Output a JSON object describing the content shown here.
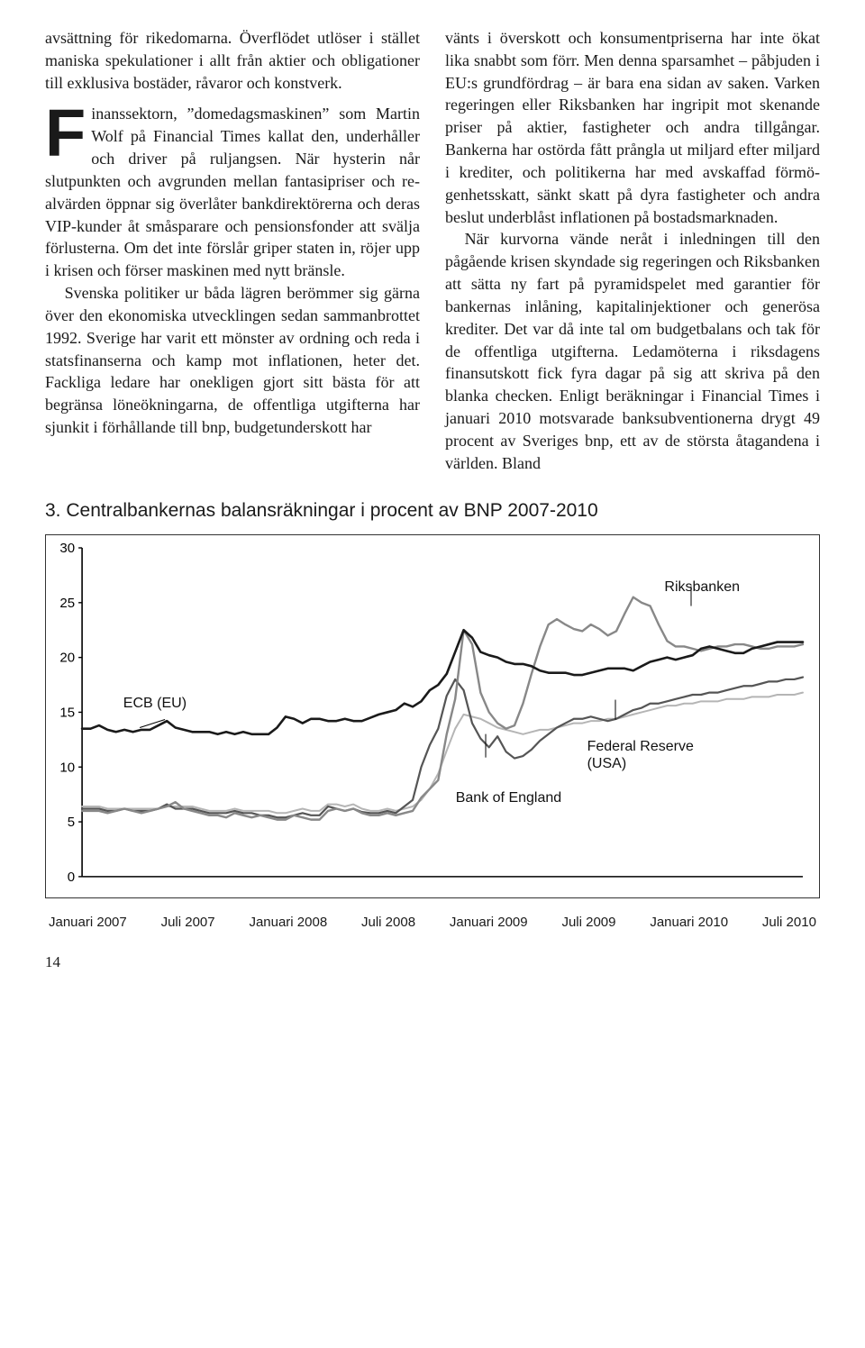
{
  "text": {
    "col1_p1a": "avsättning för rikedomarna. Överflödet ut­löser i stället maniska spekulationer i allt från aktier och obligationer till exklusiva bostäder, råvaror och konstverk.",
    "col1_dropcap": "F",
    "col1_p2": "inanssektorn, ”domedagsmaskinen” som Martin Wolf på Financial Times kallat den, underhåller och driver på ruljangsen. När hysterin når slutpunkten och avgrunden mellan fantasipriser och re­alvärden öppnar sig överlåter bankdirektö­rerna och deras VIP-kunder åt småsparare och pensionsfonder att svälja förlusterna. Om det inte förslår griper staten in, röjer upp i krisen och förser maskinen med nytt bränsle.",
    "col1_p3": "Svenska politiker ur båda lägren beröm­mer sig gärna över den ekonomiska utveck­lingen sedan sammanbrottet 1992. Sverige har varit ett mönster av ordning och reda i statsfinanserna och kamp mot inflationen, heter det. Fackliga ledare har onekligen gjort sitt bästa för att begränsa löneökning­arna, de offentliga utgifterna har sjunkit i förhållande till bnp, budgetunderskott har",
    "col2_p1": "vänts i överskott och konsumentpriserna har inte ökat lika snabbt som förr. Men denna sparsamhet – påbjuden i EU:s grundfördrag – är bara ena sidan av saken. Varken reger­ingen eller Riksbanken har ingripit mot skenande priser på aktier, fastigheter och andra tillgångar. Bankerna har ostörda fått prångla ut miljard efter miljard i krediter, och politikerna har med avskaffad förmö­genhetsskatt, sänkt skatt på dyra fastigheter och andra beslut underblåst inflationen på bostadsmarknaden.",
    "col2_p2": "När kurvorna vände neråt i inledningen till den pågående krisen skyndade sig reger­ingen och Riksbanken att sätta ny fart på pyramidspelet med garantier för bankernas inlåning, kapitalinjektioner och generösa krediter. Det var då inte tal om budgetba­lans och tak för de offentliga utgifterna. Le­damöterna i riksdagens finansutskott fick fyra dagar på sig att skriva på den blanka checken. Enligt beräkningar i Financial Ti­mes i januari 2010 motsvarade banksubven­tionerna drygt 49 procent av Sveriges bnp, ett av de största åtagandena i världen. Bland"
  },
  "chart": {
    "title": "3. Centralbankernas balansräkningar i procent av BNP 2007-2010",
    "type": "line",
    "ylim": [
      0,
      30
    ],
    "yticks": [
      0,
      5,
      10,
      15,
      20,
      25,
      30
    ],
    "xticks": [
      "Januari 2007",
      "Juli 2007",
      "Januari 2008",
      "Juli 2008",
      "Januari 2009",
      "Juli 2009",
      "Januari 2010",
      "Juli 2010"
    ],
    "background_color": "#ffffff",
    "axis_color": "#000000",
    "series": {
      "riksbanken": {
        "label": "Riksbanken",
        "color": "#888888",
        "width": 2.4,
        "data": [
          6.0,
          6.0,
          6.0,
          5.8,
          6.0,
          6.2,
          6.0,
          5.8,
          6.0,
          6.2,
          6.4,
          6.8,
          6.2,
          6.0,
          5.8,
          5.6,
          5.6,
          5.4,
          5.8,
          5.6,
          5.4,
          5.6,
          5.4,
          5.2,
          5.2,
          5.6,
          5.4,
          5.2,
          5.2,
          6.0,
          6.2,
          6.0,
          6.2,
          5.8,
          5.6,
          5.6,
          5.8,
          5.6,
          5.8,
          6.0,
          7.2,
          8.0,
          8.8,
          13.0,
          16.2,
          22.5,
          21.2,
          16.8,
          15.0,
          14.0,
          13.5,
          13.8,
          15.8,
          18.5,
          21.0,
          23.0,
          23.5,
          23.0,
          22.6,
          22.4,
          23.0,
          22.6,
          22.0,
          22.4,
          24.0,
          25.5,
          25.0,
          24.7,
          23.0,
          21.5,
          21.0,
          21.0,
          20.8,
          20.6,
          20.8,
          21.0,
          21.0,
          21.2,
          21.2,
          21.0,
          20.8,
          20.8,
          21.0,
          21.0,
          21.0,
          21.2
        ]
      },
      "ecb": {
        "label": "ECB (EU)",
        "color": "#1a1a1a",
        "width": 2.6,
        "data": [
          13.5,
          13.5,
          13.8,
          13.4,
          13.2,
          13.4,
          13.2,
          13.4,
          13.4,
          13.8,
          14.2,
          13.6,
          13.4,
          13.2,
          13.2,
          13.2,
          13.0,
          13.2,
          13.0,
          13.2,
          13.0,
          13.0,
          13.0,
          13.6,
          14.6,
          14.4,
          14.0,
          14.4,
          14.4,
          14.2,
          14.2,
          14.4,
          14.2,
          14.2,
          14.5,
          14.8,
          15.0,
          15.2,
          15.8,
          15.5,
          16.0,
          17.0,
          17.5,
          18.5,
          20.5,
          22.5,
          21.8,
          20.5,
          20.2,
          20.0,
          19.6,
          19.4,
          19.4,
          19.2,
          18.8,
          18.6,
          18.6,
          18.6,
          18.4,
          18.4,
          18.6,
          18.8,
          19.0,
          19.0,
          19.0,
          18.8,
          19.2,
          19.6,
          19.8,
          20.0,
          19.8,
          20.0,
          20.2,
          20.8,
          21.0,
          20.8,
          20.6,
          20.4,
          20.4,
          20.8,
          21.0,
          21.2,
          21.4,
          21.4,
          21.4,
          21.4
        ]
      },
      "boe": {
        "label": "Bank of England",
        "color": "#555555",
        "width": 2.2,
        "data": [
          6.2,
          6.2,
          6.2,
          6.0,
          6.0,
          6.2,
          6.0,
          6.0,
          6.0,
          6.2,
          6.6,
          6.2,
          6.2,
          6.2,
          6.0,
          5.8,
          5.8,
          5.8,
          6.0,
          5.8,
          5.8,
          5.6,
          5.6,
          5.4,
          5.4,
          5.6,
          5.8,
          5.6,
          5.6,
          6.4,
          6.2,
          6.0,
          6.2,
          5.9,
          5.8,
          5.8,
          6.0,
          5.8,
          6.4,
          7.0,
          10.0,
          12.0,
          13.5,
          16.5,
          18.0,
          17.0,
          14.0,
          12.6,
          11.8,
          12.8,
          11.4,
          10.8,
          11.0,
          11.6,
          12.4,
          13.0,
          13.6,
          14.0,
          14.4,
          14.4,
          14.6,
          14.4,
          14.2,
          14.4,
          14.8,
          15.2,
          15.4,
          15.8,
          15.8,
          16.0,
          16.2,
          16.4,
          16.6,
          16.6,
          16.8,
          16.8,
          17.0,
          17.2,
          17.4,
          17.4,
          17.6,
          17.8,
          17.8,
          18.0,
          18.0,
          18.2
        ]
      },
      "fed": {
        "label": "Federal Reserve",
        "label2": "(USA)",
        "color": "#b5b5b5",
        "width": 2.0,
        "data": [
          6.4,
          6.4,
          6.4,
          6.2,
          6.2,
          6.2,
          6.2,
          6.2,
          6.2,
          6.2,
          6.4,
          6.4,
          6.4,
          6.4,
          6.2,
          6.0,
          6.0,
          6.0,
          6.2,
          6.0,
          6.0,
          6.0,
          6.0,
          5.8,
          5.8,
          6.0,
          6.2,
          6.0,
          6.0,
          6.6,
          6.6,
          6.4,
          6.6,
          6.2,
          6.0,
          6.0,
          6.2,
          6.0,
          6.2,
          6.4,
          7.0,
          8.0,
          9.4,
          11.5,
          13.5,
          14.8,
          14.6,
          14.4,
          14.0,
          13.6,
          13.4,
          13.2,
          13.0,
          13.2,
          13.4,
          13.4,
          13.6,
          13.8,
          14.0,
          14.0,
          14.2,
          14.2,
          14.4,
          14.4,
          14.6,
          14.8,
          15.0,
          15.2,
          15.4,
          15.6,
          15.6,
          15.8,
          15.8,
          16.0,
          16.0,
          16.0,
          16.2,
          16.2,
          16.2,
          16.4,
          16.4,
          16.4,
          16.6,
          16.6,
          16.6,
          16.8
        ]
      }
    },
    "label_positions": {
      "riksbanken": {
        "left_pct": 80,
        "top_pct": 12
      },
      "ecb": {
        "left_pct": 10,
        "top_pct": 44
      },
      "boe": {
        "left_pct": 53,
        "top_pct": 70
      },
      "fed": {
        "left_pct": 70,
        "top_pct": 56
      }
    }
  },
  "page_number": "14"
}
